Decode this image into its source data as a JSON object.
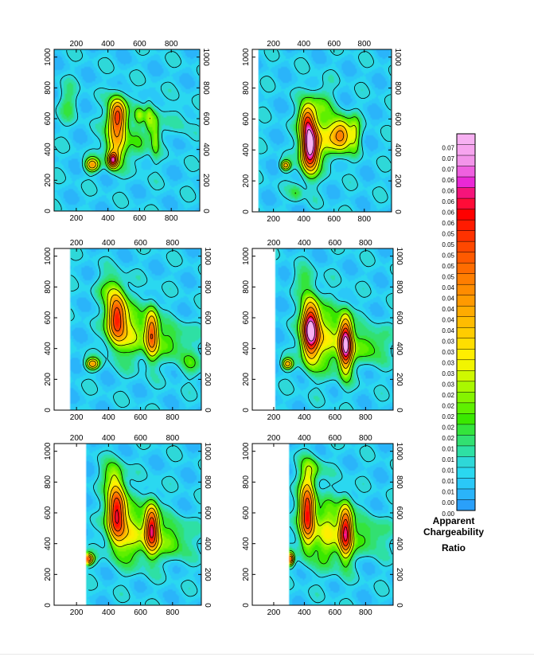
{
  "chart_data": {
    "type": "heatmap",
    "grid": "off",
    "legend_placement": "right",
    "x_ticks": [
      200,
      400,
      600,
      800
    ],
    "y_ticks": [
      0,
      200,
      400,
      600,
      800,
      1000
    ],
    "xlim": [
      60,
      980
    ],
    "ylim": [
      0,
      1050
    ],
    "colorbar": {
      "title_lines": [
        "Apparent",
        "Chargeability",
        "Ratio"
      ],
      "tick_labels": [
        "0.07",
        "0.07",
        "0.07",
        "0.06",
        "0.06",
        "0.06",
        "0.06",
        "0.06",
        "0.05",
        "0.05",
        "0.05",
        "0.05",
        "0.05",
        "0.04",
        "0.04",
        "0.04",
        "0.04",
        "0.04",
        "0.03",
        "0.03",
        "0.03",
        "0.03",
        "0.03",
        "0.02",
        "0.02",
        "0.02",
        "0.02",
        "0.02",
        "0.01",
        "0.01",
        "0.01",
        "0.01",
        "0.01",
        "0.00",
        "0.00"
      ],
      "colors": [
        "#f7b0f2",
        "#f7a4ef",
        "#f394ea",
        "#ef60e0",
        "#ea28d6",
        "#f5147b",
        "#ff0c38",
        "#ff0000",
        "#ff1b00",
        "#ff3200",
        "#ff4800",
        "#ff5a00",
        "#ff6c00",
        "#ff7e00",
        "#ff8c00",
        "#ff9a00",
        "#ffab00",
        "#ffbc00",
        "#ffcd00",
        "#ffde00",
        "#ffee00",
        "#f2f500",
        "#cff800",
        "#a9f800",
        "#85f400",
        "#5ff000",
        "#3ae800",
        "#34e43c",
        "#32e071",
        "#2ee0a4",
        "#2ed8d8",
        "#2ad8f0",
        "#2ac8f8",
        "#2ab4fa",
        "#2aa0fa"
      ]
    },
    "panels": [
      {
        "id": "p1",
        "x_no_data_below": 60,
        "anomalies": [
          {
            "x": 300,
            "y": 300,
            "amp": 0.032,
            "sx": 30,
            "sy": 30
          },
          {
            "x": 430,
            "y": 330,
            "amp": 0.043,
            "sx": 22,
            "sy": 35
          },
          {
            "x": 450,
            "y": 430,
            "amp": 0.028,
            "sx": 45,
            "sy": 90
          },
          {
            "x": 460,
            "y": 620,
            "amp": 0.046,
            "sx": 38,
            "sy": 80
          },
          {
            "x": 600,
            "y": 620,
            "amp": 0.013,
            "sx": 22,
            "sy": 40
          },
          {
            "x": 660,
            "y": 600,
            "amp": 0.016,
            "sx": 20,
            "sy": 80
          },
          {
            "x": 700,
            "y": 500,
            "amp": 0.015,
            "sx": 20,
            "sy": 100
          },
          {
            "x": 600,
            "y": 450,
            "amp": 0.01,
            "sx": 40,
            "sy": 100
          },
          {
            "x": 150,
            "y": 700,
            "amp": 0.008,
            "sx": 40,
            "sy": 80
          },
          {
            "x": 850,
            "y": 600,
            "amp": 0.006,
            "sx": 40,
            "sy": 80
          }
        ]
      },
      {
        "id": "p2",
        "x_no_data_below": 100,
        "anomalies": [
          {
            "x": 440,
            "y": 420,
            "amp": 0.067,
            "sx": 40,
            "sy": 110
          },
          {
            "x": 420,
            "y": 600,
            "amp": 0.03,
            "sx": 35,
            "sy": 70
          },
          {
            "x": 280,
            "y": 300,
            "amp": 0.03,
            "sx": 22,
            "sy": 22
          },
          {
            "x": 650,
            "y": 500,
            "amp": 0.035,
            "sx": 45,
            "sy": 70
          },
          {
            "x": 560,
            "y": 480,
            "amp": 0.016,
            "sx": 60,
            "sy": 100
          },
          {
            "x": 740,
            "y": 500,
            "amp": 0.015,
            "sx": 25,
            "sy": 80
          },
          {
            "x": 500,
            "y": 700,
            "amp": 0.01,
            "sx": 60,
            "sy": 80
          },
          {
            "x": 350,
            "y": 120,
            "amp": 0.009,
            "sx": 30,
            "sy": 40
          }
        ]
      },
      {
        "id": "p3",
        "x_no_data_below": 160,
        "anomalies": [
          {
            "x": 450,
            "y": 600,
            "amp": 0.048,
            "sx": 42,
            "sy": 120
          },
          {
            "x": 670,
            "y": 500,
            "amp": 0.038,
            "sx": 28,
            "sy": 110
          },
          {
            "x": 300,
            "y": 300,
            "amp": 0.032,
            "sx": 28,
            "sy": 25
          },
          {
            "x": 560,
            "y": 500,
            "amp": 0.016,
            "sx": 70,
            "sy": 120
          },
          {
            "x": 800,
            "y": 450,
            "amp": 0.012,
            "sx": 80,
            "sy": 80
          },
          {
            "x": 400,
            "y": 800,
            "amp": 0.008,
            "sx": 60,
            "sy": 60
          },
          {
            "x": 900,
            "y": 300,
            "amp": 0.008,
            "sx": 50,
            "sy": 60
          }
        ]
      },
      {
        "id": "p4",
        "x_no_data_below": 215,
        "anomalies": [
          {
            "x": 440,
            "y": 520,
            "amp": 0.065,
            "sx": 40,
            "sy": 130
          },
          {
            "x": 670,
            "y": 430,
            "amp": 0.058,
            "sx": 30,
            "sy": 120
          },
          {
            "x": 290,
            "y": 300,
            "amp": 0.03,
            "sx": 24,
            "sy": 24
          },
          {
            "x": 560,
            "y": 460,
            "amp": 0.018,
            "sx": 70,
            "sy": 140
          },
          {
            "x": 820,
            "y": 420,
            "amp": 0.014,
            "sx": 80,
            "sy": 80
          },
          {
            "x": 400,
            "y": 850,
            "amp": 0.008,
            "sx": 50,
            "sy": 50
          }
        ]
      },
      {
        "id": "p5",
        "x_no_data_below": 265,
        "anomalies": [
          {
            "x": 450,
            "y": 600,
            "amp": 0.052,
            "sx": 40,
            "sy": 140
          },
          {
            "x": 670,
            "y": 500,
            "amp": 0.048,
            "sx": 30,
            "sy": 110
          },
          {
            "x": 270,
            "y": 300,
            "amp": 0.042,
            "sx": 25,
            "sy": 25
          },
          {
            "x": 560,
            "y": 460,
            "amp": 0.018,
            "sx": 70,
            "sy": 130
          },
          {
            "x": 800,
            "y": 430,
            "amp": 0.014,
            "sx": 80,
            "sy": 90
          },
          {
            "x": 420,
            "y": 850,
            "amp": 0.01,
            "sx": 50,
            "sy": 60
          }
        ]
      },
      {
        "id": "p6",
        "x_no_data_below": 305,
        "anomalies": [
          {
            "x": 420,
            "y": 600,
            "amp": 0.05,
            "sx": 35,
            "sy": 150
          },
          {
            "x": 670,
            "y": 480,
            "amp": 0.048,
            "sx": 30,
            "sy": 120
          },
          {
            "x": 310,
            "y": 300,
            "amp": 0.04,
            "sx": 15,
            "sy": 28
          },
          {
            "x": 560,
            "y": 470,
            "amp": 0.02,
            "sx": 70,
            "sy": 140
          },
          {
            "x": 820,
            "y": 450,
            "amp": 0.012,
            "sx": 80,
            "sy": 80
          },
          {
            "x": 450,
            "y": 880,
            "amp": 0.012,
            "sx": 50,
            "sy": 60
          }
        ]
      }
    ]
  }
}
